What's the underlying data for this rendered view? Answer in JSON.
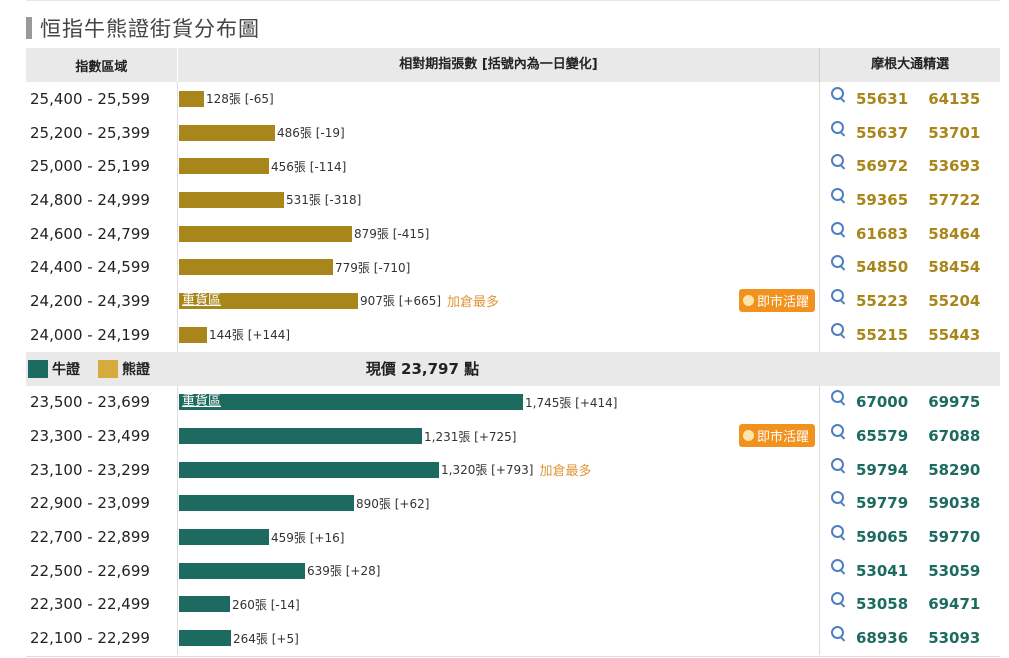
{
  "title": "恒指牛熊證街貨分布圖",
  "header": {
    "col_range": "指數區域",
    "col_qty": "相對期指張數 [括號內為一日變化]",
    "col_picks": "摩根大通精選"
  },
  "legend": {
    "bull": "牛證",
    "bear": "熊證"
  },
  "current_price": "現價 23,797 點",
  "badges": {
    "heavy": "重貨區",
    "hot": "即市活躍",
    "most_added": "加倉最多"
  },
  "colors": {
    "bear": "#a8861a",
    "bull": "#1d6b60",
    "hot": "#f2921e",
    "note": "#e0963a"
  },
  "bear_rows": [
    {
      "range": "25,400 - 25,599",
      "qty": 128,
      "label": "128張 [-65]",
      "codes": [
        "55631",
        "64135"
      ]
    },
    {
      "range": "25,200 - 25,399",
      "qty": 486,
      "label": "486張 [-19]",
      "codes": [
        "55637",
        "53701"
      ]
    },
    {
      "range": "25,000 - 25,199",
      "qty": 456,
      "label": "456張 [-114]",
      "codes": [
        "56972",
        "53693"
      ]
    },
    {
      "range": "24,800 - 24,999",
      "qty": 531,
      "label": "531張 [-318]",
      "codes": [
        "59365",
        "57722"
      ]
    },
    {
      "range": "24,600 - 24,799",
      "qty": 879,
      "label": "879張 [-415]",
      "codes": [
        "61683",
        "58464"
      ]
    },
    {
      "range": "24,400 - 24,599",
      "qty": 779,
      "label": "779張 [-710]",
      "codes": [
        "54850",
        "58454"
      ]
    },
    {
      "range": "24,200 - 24,399",
      "qty": 907,
      "label": "907張 [+665]",
      "heavy": true,
      "most_added": true,
      "hot": true,
      "codes": [
        "55223",
        "55204"
      ]
    },
    {
      "range": "24,000 - 24,199",
      "qty": 144,
      "label": "144張 [+144]",
      "codes": [
        "55215",
        "55443"
      ]
    }
  ],
  "bull_rows": [
    {
      "range": "23,500 - 23,699",
      "qty": 1745,
      "label": "1,745張 [+414]",
      "heavy": true,
      "codes": [
        "67000",
        "69975"
      ]
    },
    {
      "range": "23,300 - 23,499",
      "qty": 1231,
      "label": "1,231張 [+725]",
      "hot": true,
      "codes": [
        "65579",
        "67088"
      ]
    },
    {
      "range": "23,100 - 23,299",
      "qty": 1320,
      "label": "1,320張 [+793]",
      "most_added": true,
      "codes": [
        "59794",
        "58290"
      ]
    },
    {
      "range": "22,900 - 23,099",
      "qty": 890,
      "label": "890張 [+62]",
      "codes": [
        "59779",
        "59038"
      ]
    },
    {
      "range": "22,700 - 22,899",
      "qty": 459,
      "label": "459張 [+16]",
      "codes": [
        "59065",
        "59770"
      ]
    },
    {
      "range": "22,500 - 22,699",
      "qty": 639,
      "label": "639張 [+28]",
      "codes": [
        "53041",
        "53059"
      ]
    },
    {
      "range": "22,300 - 22,499",
      "qty": 260,
      "label": "260張 [-14]",
      "codes": [
        "53058",
        "69471"
      ]
    },
    {
      "range": "22,100 - 22,299",
      "qty": 264,
      "label": "264張 [+5]",
      "codes": [
        "68936",
        "53093"
      ]
    }
  ]
}
